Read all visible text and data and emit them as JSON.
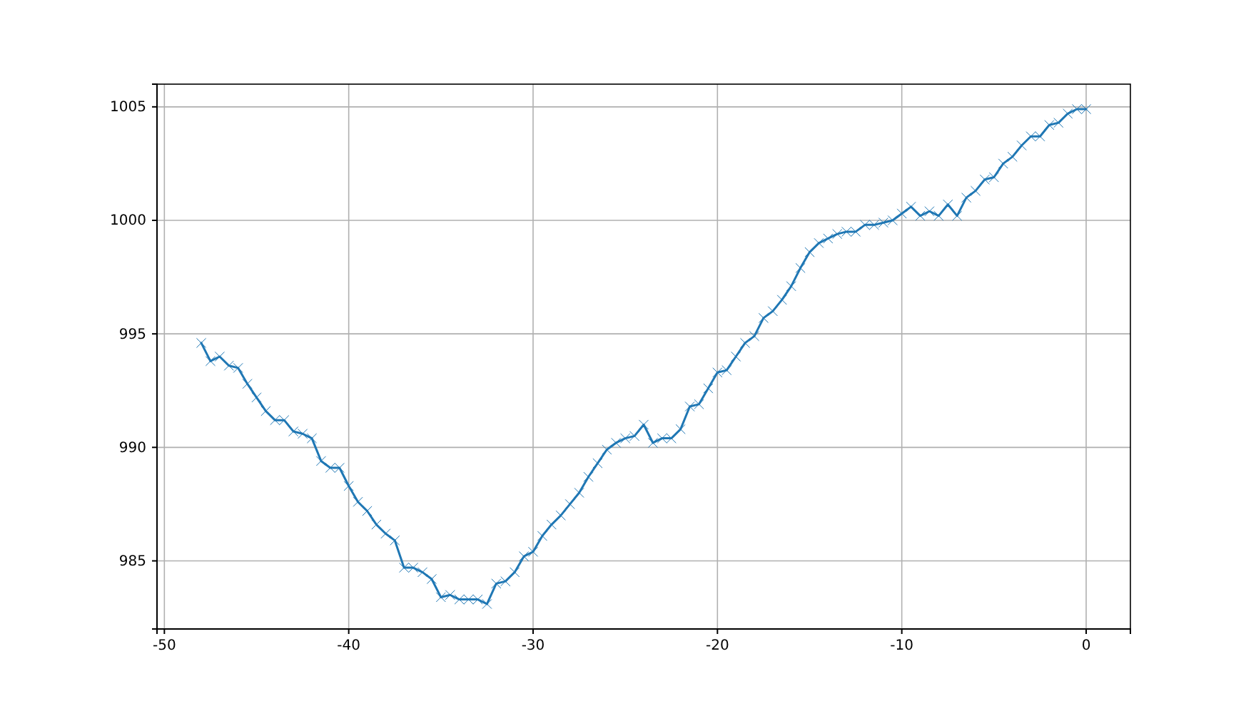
{
  "chart_data": {
    "type": "line",
    "x": [
      -48,
      -47.5,
      -47,
      -46.5,
      -46,
      -45.5,
      -45,
      -44.5,
      -44,
      -43.5,
      -43,
      -42.5,
      -42,
      -41.5,
      -41,
      -40.5,
      -40,
      -39.5,
      -39,
      -38.5,
      -38,
      -37.5,
      -37,
      -36.5,
      -36,
      -35.5,
      -35,
      -34.5,
      -34,
      -33.5,
      -33,
      -32.5,
      -32,
      -31.5,
      -31,
      -30.5,
      -30,
      -29.5,
      -29,
      -28.5,
      -28,
      -27.5,
      -27,
      -26.5,
      -26,
      -25.5,
      -25,
      -24.5,
      -24,
      -23.5,
      -23,
      -22.5,
      -22,
      -21.5,
      -21,
      -20.5,
      -20,
      -19.5,
      -19,
      -18.5,
      -18,
      -17.5,
      -17,
      -16.5,
      -16,
      -15.5,
      -15,
      -14.5,
      -14,
      -13.5,
      -13,
      -12.5,
      -12,
      -11.5,
      -11,
      -10.5,
      -10,
      -9.5,
      -9,
      -8.5,
      -8,
      -7.5,
      -7,
      -6.5,
      -6,
      -5.5,
      -5,
      -4.5,
      -4,
      -3.5,
      -3,
      -2.5,
      -2,
      -1.5,
      -1,
      -0.5,
      0
    ],
    "series": [
      {
        "color": "#1f77b4",
        "values": [
          994.6,
          993.8,
          994.0,
          993.6,
          993.5,
          992.8,
          992.2,
          991.6,
          991.2,
          991.2,
          990.7,
          990.6,
          990.4,
          989.4,
          989.1,
          989.1,
          988.3,
          987.6,
          987.2,
          986.6,
          986.2,
          985.9,
          984.7,
          984.7,
          984.5,
          984.2,
          983.4,
          983.5,
          983.3,
          983.3,
          983.3,
          983.1,
          984.0,
          984.1,
          984.5,
          985.2,
          985.4,
          986.1,
          986.6,
          987.0,
          987.5,
          988.0,
          988.7,
          989.3,
          989.9,
          990.2,
          990.4,
          990.5,
          991.0,
          990.2,
          990.4,
          990.4,
          990.8,
          991.8,
          991.9,
          992.6,
          993.3,
          993.4,
          994.0,
          994.6,
          994.9,
          995.7,
          996.0,
          996.5,
          997.1,
          997.9,
          998.6,
          999.0,
          999.2,
          999.4,
          999.5,
          999.5,
          999.8,
          999.8,
          999.9,
          1000.0,
          1000.3,
          1000.6,
          1000.2,
          1000.4,
          1000.2,
          1000.7,
          1000.2,
          1001.0,
          1001.3,
          1001.8,
          1001.9,
          1002.5,
          1002.8,
          1003.3,
          1003.7,
          1003.7,
          1004.2,
          1004.3,
          1004.7,
          1004.9,
          1004.9
        ]
      }
    ],
    "xlim": [
      -50.4,
      2.4
    ],
    "ylim": [
      982.0,
      1006.0
    ],
    "xticks": [
      -50,
      -40,
      -30,
      -20,
      -10,
      0
    ],
    "yticks": [
      985,
      990,
      995,
      1000,
      1005
    ],
    "grid": true,
    "marker": "cross",
    "line_style": "solid"
  }
}
